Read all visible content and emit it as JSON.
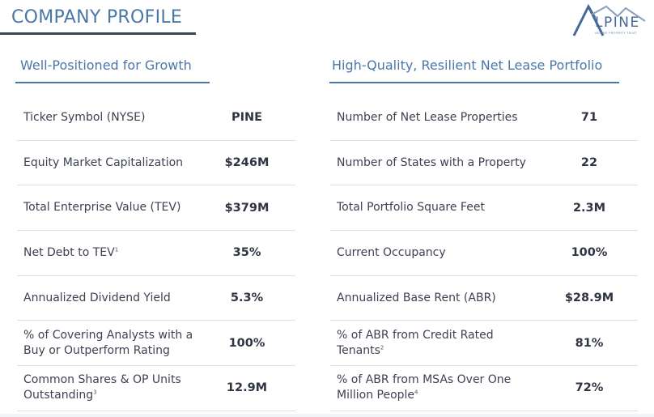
{
  "header": {
    "title": "COMPANY PROFILE",
    "logo_text": "LPINE",
    "logo_subtext": "INCOME PROPERTY TRUST"
  },
  "left": {
    "heading": "Well-Positioned for Growth",
    "rows": [
      {
        "label": "Ticker Symbol (NYSE)",
        "sup": "",
        "value": "PINE"
      },
      {
        "label": "Equity Market Capitalization",
        "sup": "",
        "value": "$246M"
      },
      {
        "label": "Total Enterprise Value (TEV)",
        "sup": "",
        "value": "$379M"
      },
      {
        "label": "Net Debt to TEV",
        "sup": "1",
        "value": "35%"
      },
      {
        "label": "Annualized Dividend Yield",
        "sup": "",
        "value": "5.3%"
      },
      {
        "label": "% of Covering Analysts with a Buy or Outperform Rating",
        "sup": "",
        "value": "100%"
      },
      {
        "label": "Common Shares & OP Units Outstanding",
        "sup": "3",
        "value": "12.9M"
      }
    ]
  },
  "right": {
    "heading": "High-Quality, Resilient Net Lease Portfolio",
    "rows": [
      {
        "label": "Number of Net Lease Properties",
        "sup": "",
        "value": "71"
      },
      {
        "label": "Number of States with a Property",
        "sup": "",
        "value": "22"
      },
      {
        "label": "Total Portfolio Square Feet",
        "sup": "",
        "value": "2.3M"
      },
      {
        "label": "Current Occupancy",
        "sup": "",
        "value": "100%"
      },
      {
        "label": "Annualized Base Rent (ABR)",
        "sup": "",
        "value": "$28.9M"
      },
      {
        "label": "% of ABR from Credit Rated Tenants",
        "sup": "2",
        "value": "81%"
      },
      {
        "label": "% of ABR from MSAs Over One Million People",
        "sup": "4",
        "value": "72%"
      }
    ]
  },
  "colors": {
    "accent": "#4b77a8",
    "text": "#3d4252"
  }
}
